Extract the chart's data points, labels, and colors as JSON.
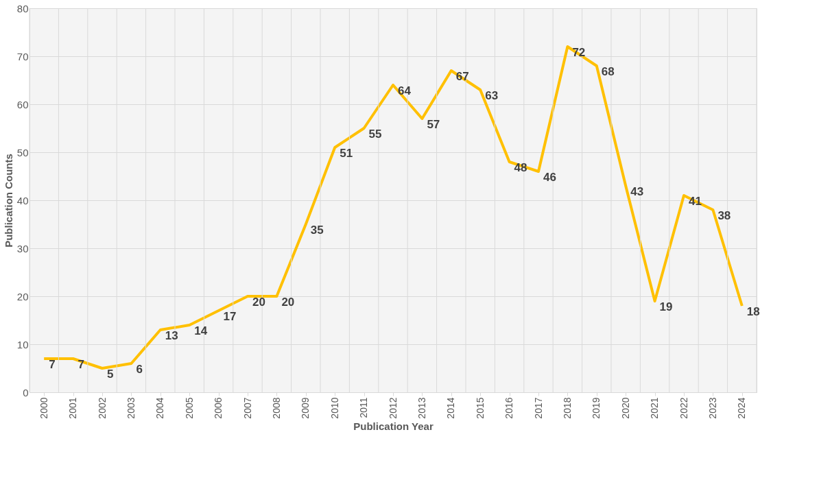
{
  "chart_data": {
    "type": "line",
    "xlabel": "Publication Year",
    "ylabel": "Publication Counts",
    "categories": [
      "2000",
      "2001",
      "2002",
      "2003",
      "2004",
      "2005",
      "2006",
      "2007",
      "2008",
      "2009",
      "2010",
      "2011",
      "2012",
      "2013",
      "2014",
      "2015",
      "2016",
      "2017",
      "2018",
      "2019",
      "2020",
      "2021",
      "2022",
      "2023",
      "2024"
    ],
    "series": [
      {
        "color": "#ffc000",
        "values": [
          7,
          7,
          5,
          6,
          13,
          14,
          17,
          20,
          20,
          35,
          51,
          55,
          64,
          57,
          67,
          63,
          48,
          46,
          72,
          68,
          43,
          19,
          41,
          38,
          18
        ]
      }
    ],
    "ylim": [
      0,
      80
    ],
    "yticks": [
      0,
      10,
      20,
      30,
      40,
      50,
      60,
      70,
      80
    ],
    "grid": true,
    "data_labels": true,
    "marker": "none",
    "line_style": "solid"
  }
}
